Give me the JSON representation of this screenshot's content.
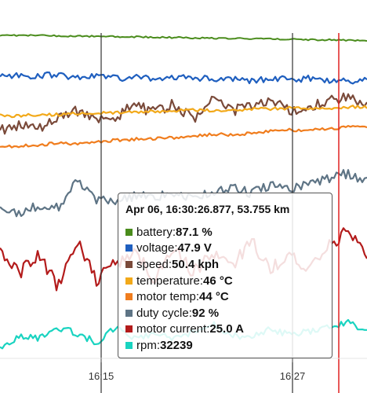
{
  "chart_data": {
    "type": "line",
    "x_axis": {
      "type": "time",
      "ticks": [
        "16:15",
        "16:27"
      ]
    },
    "series": [
      {
        "name": "battery",
        "color": "#4a8c1c",
        "values": [
          95.2,
          94.9,
          94.5,
          94.1,
          93.6,
          93.2,
          92.7,
          92.3,
          91.8,
          91.4,
          90.9,
          90.5,
          90.0,
          89.6,
          89.1,
          88.6,
          88.1,
          87.6,
          87.1,
          86.7
        ]
      },
      {
        "name": "voltage",
        "color": "#1f5fbf",
        "values": [
          48.4,
          48.3,
          48.3,
          48.4,
          48.2,
          48.3,
          48.1,
          48.2,
          48.0,
          48.1,
          48.2,
          48.0,
          48.1,
          47.9,
          48.1,
          48.0,
          48.1,
          47.9,
          47.9,
          48.0
        ]
      },
      {
        "name": "speed",
        "color": "#7a4a3a",
        "values": [
          35.2,
          38.1,
          36.0,
          41.5,
          44.3,
          39.0,
          41.2,
          46.8,
          43.1,
          47.2,
          40.5,
          48.3,
          44.0,
          46.1,
          49.2,
          43.8,
          45.5,
          47.9,
          50.4,
          46.0
        ]
      },
      {
        "name": "temperature",
        "color": "#f2a91a",
        "values": [
          38,
          38,
          39,
          39,
          40,
          40,
          41,
          41,
          42,
          42,
          43,
          43,
          43,
          44,
          44,
          45,
          45,
          45,
          46,
          46
        ]
      },
      {
        "name": "motor temp",
        "color": "#f07d1e",
        "values": [
          31,
          31,
          32,
          33,
          33,
          34,
          35,
          36,
          36,
          37,
          38,
          39,
          39,
          40,
          41,
          42,
          42,
          43,
          44,
          44
        ]
      },
      {
        "name": "duty cycle",
        "color": "#5e7485",
        "values": [
          62,
          60,
          66,
          64,
          88,
          70,
          68,
          74,
          72,
          76,
          70,
          78,
          80,
          76,
          82,
          80,
          84,
          88,
          92,
          86
        ]
      },
      {
        "name": "motor current",
        "color": "#b31b1b",
        "values": [
          20.2,
          14.1,
          18.4,
          10.5,
          22.3,
          12.2,
          16.8,
          18.9,
          13.0,
          21.4,
          14.2,
          19.5,
          16.0,
          22.1,
          15.5,
          18.3,
          14.7,
          20.6,
          25.0,
          17.2
        ]
      },
      {
        "name": "rpm",
        "color": "#19d3c0",
        "values": [
          29100,
          30500,
          30200,
          31600,
          30900,
          29700,
          31800,
          30100,
          30800,
          30300,
          31000,
          32100,
          30600,
          30400,
          31500,
          30700,
          31100,
          31700,
          32239,
          31300
        ]
      }
    ],
    "cursor_lines": [
      {
        "color": "#333333"
      },
      {
        "color": "#333333"
      },
      {
        "color": "#e02020"
      }
    ]
  },
  "tooltip": {
    "title": "Apr 06, 16:30:26.877, 53.755 km",
    "rows": [
      {
        "label": "battery: ",
        "value": "87.1 %",
        "color": "#4a8c1c"
      },
      {
        "label": "voltage: ",
        "value": "47.9 V",
        "color": "#1f5fbf"
      },
      {
        "label": "speed: ",
        "value": "50.4 kph",
        "color": "#7a4a3a"
      },
      {
        "label": "temperature: ",
        "value": "46 °C",
        "color": "#f2a91a"
      },
      {
        "label": "motor temp: ",
        "value": "44 °C",
        "color": "#f07d1e"
      },
      {
        "label": "duty cycle: ",
        "value": "92 %",
        "color": "#5e7485"
      },
      {
        "label": "motor current: ",
        "value": "25.0 A",
        "color": "#b31b1b"
      },
      {
        "label": "rpm: ",
        "value": "32239",
        "color": "#19d3c0"
      }
    ]
  }
}
